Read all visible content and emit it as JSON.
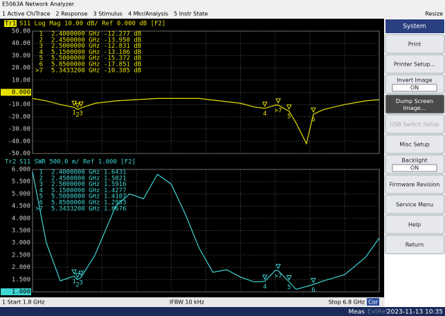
{
  "window": {
    "title": "E5063A Network Analyzer",
    "resize": "Resize"
  },
  "menu": [
    "1 Active Ch/Trace",
    "2 Response",
    "3 Stimulus",
    "4 Mkr/Analysis",
    "5 Instr State"
  ],
  "trace1": {
    "tag": "Tr1",
    "header": "S11 Log Mag 10.00 dB/ Ref 0.000 dB [F2]",
    "color": "#e6e000",
    "ylim": [
      -50,
      50
    ],
    "yticks": [
      {
        "value": 50,
        "label": "50.00"
      },
      {
        "value": 40,
        "label": "40.00"
      },
      {
        "value": 30,
        "label": "30.00"
      },
      {
        "value": 20,
        "label": "20.00"
      },
      {
        "value": 10,
        "label": "10.00"
      },
      {
        "value": 0,
        "label": "0.000"
      },
      {
        "value": -10,
        "label": "-10.00"
      },
      {
        "value": -20,
        "label": "-20.00"
      },
      {
        "value": -30,
        "label": "-30.00"
      },
      {
        "value": -40,
        "label": "-40.00"
      },
      {
        "value": -50,
        "label": "-50.00"
      }
    ],
    "freq": [
      1.8,
      2.0,
      2.2,
      2.4,
      2.45,
      2.5,
      2.7,
      3.0,
      3.3,
      3.6,
      3.9,
      4.2,
      4.5,
      4.8,
      5.0,
      5.15,
      5.3,
      5.34,
      5.5,
      5.6,
      5.75,
      5.85,
      6.0,
      6.3,
      6.6,
      6.8
    ],
    "values": [
      -5,
      -7,
      -10,
      -12.3,
      -14,
      -12.8,
      -9,
      -7,
      -6,
      -5,
      -5,
      -5,
      -7,
      -9,
      -12,
      -13.1,
      -10.5,
      -10.4,
      -15.4,
      -25,
      -42,
      -17.9,
      -14,
      -10,
      -7,
      -6
    ],
    "markers": [
      [
        "1",
        "2.4000000 GHz",
        "-12.277 dB"
      ],
      [
        "2",
        "2.4500000 GHz",
        "-13.950 dB"
      ],
      [
        "3",
        "2.5000000 GHz",
        "-12.831 dB"
      ],
      [
        "4",
        "5.1500000 GHz",
        "-13.106 dB"
      ],
      [
        "5",
        "5.5000000 GHz",
        "-15.372 dB"
      ],
      [
        "6",
        "5.8500000 GHz",
        "-17.851 dB"
      ],
      [
        ">7",
        "5.3433200 GHz",
        "-10.385 dB"
      ]
    ]
  },
  "trace2": {
    "tag": "Tr2",
    "header": "S11 SWR 500.0 m/ Ref 1.000 [F2]",
    "color": "#3fd6d6",
    "ylim": [
      1,
      6
    ],
    "yticks": [
      {
        "value": 6,
        "label": "6.000"
      },
      {
        "value": 5.5,
        "label": "5.500"
      },
      {
        "value": 5,
        "label": "5.000"
      },
      {
        "value": 4.5,
        "label": "4.500"
      },
      {
        "value": 4,
        "label": "4.000"
      },
      {
        "value": 3.5,
        "label": "3.500"
      },
      {
        "value": 3,
        "label": "3.000"
      },
      {
        "value": 2.5,
        "label": "2.500"
      },
      {
        "value": 2,
        "label": "2.000"
      },
      {
        "value": 1.5,
        "label": "1.500"
      },
      {
        "value": 1,
        "label": "1.000"
      }
    ],
    "freq": [
      1.8,
      2.0,
      2.2,
      2.4,
      2.45,
      2.5,
      2.7,
      3.0,
      3.2,
      3.4,
      3.6,
      3.8,
      4.0,
      4.2,
      4.4,
      4.6,
      4.8,
      5.0,
      5.15,
      5.3,
      5.34,
      5.5,
      5.6,
      5.85,
      6.0,
      6.3,
      6.6,
      6.8
    ],
    "values": [
      5.9,
      3.0,
      1.45,
      1.64,
      1.5,
      1.59,
      2.5,
      4.5,
      5.0,
      4.8,
      5.8,
      5.4,
      4.2,
      2.8,
      1.8,
      1.9,
      1.6,
      1.4,
      1.43,
      1.87,
      1.87,
      1.41,
      1.1,
      1.3,
      1.45,
      1.7,
      2.4,
      3.2
    ],
    "markers": [
      [
        "1",
        "2.4000000 GHz",
        "1.6431"
      ],
      [
        "2",
        "2.4500000 GHz",
        "1.5021"
      ],
      [
        "3",
        "2.5000000 GHz",
        "1.5916"
      ],
      [
        "4",
        "5.1500000 GHz",
        "1.4277"
      ],
      [
        "5",
        "5.5000000 GHz",
        "1.4107"
      ],
      [
        "6",
        "5.8500000 GHz",
        "1.2953"
      ],
      [
        ">7",
        "5.3433200 GHz",
        "1.8676"
      ]
    ]
  },
  "stimulus": {
    "start": "1  Start 1.8 GHz",
    "ifbw": "IFBW 10 kHz",
    "stop": "Stop 6.8 GHz",
    "cor": "Cor"
  },
  "softkeys": {
    "header": "System",
    "keys": [
      {
        "label": "Print"
      },
      {
        "label": "Printer Setup..."
      },
      {
        "label": "Invert Image",
        "value": "ON"
      },
      {
        "label": "Dump Screen Image...",
        "dark": true
      },
      {
        "label": "USB Switch Setup",
        "disabled": true
      },
      {
        "label": "Misc Setup"
      },
      {
        "label": "Backlight",
        "value": "ON"
      },
      {
        "label": "Firmware Revision"
      },
      {
        "label": "Service Menu"
      },
      {
        "label": "Help"
      },
      {
        "label": "Return"
      }
    ]
  },
  "statusbar": {
    "meas": "Meas",
    "extref": "ExtRef",
    "datetime": "2023-11-13 10:35"
  }
}
